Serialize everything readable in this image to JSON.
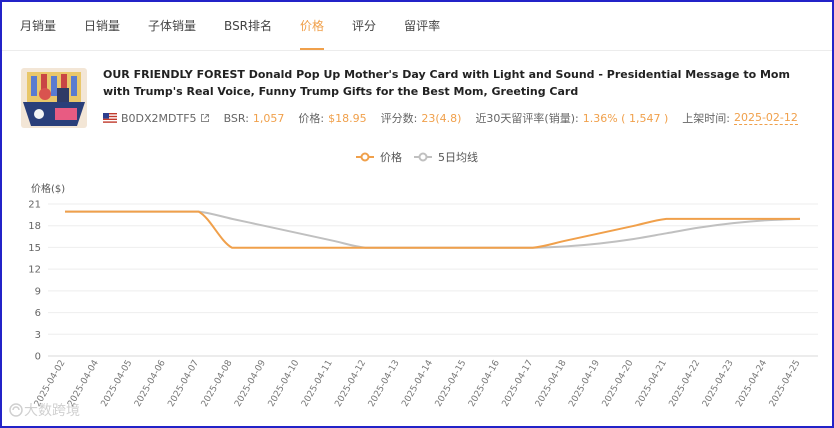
{
  "tabs": [
    "月销量",
    "日销量",
    "子体销量",
    "BSR排名",
    "价格",
    "评分",
    "留评率"
  ],
  "active_tab": "价格",
  "product": {
    "title": "OUR FRIENDLY FOREST Donald Pop Up Mother's Day Card with Light and Sound - Presidential Message to Mom with Trump's Real Voice, Funny Trump Gifts for the Best Mom, Greeting Card",
    "asin": "B0DX2MDTF5",
    "bsr_label": "BSR:",
    "bsr_value": "1,057",
    "price_label": "价格:",
    "price_value": "$18.95",
    "rating_label": "评分数:",
    "rating_value": "23(4.8)",
    "review_rate_label": "近30天留评率(销量):",
    "review_rate_value": "1.36% ( 1,547 )",
    "listed_label": "上架时间:",
    "listed_value": "2025-02-12",
    "flag_icon": "us-flag-icon",
    "link_icon": "external-link-icon"
  },
  "legend": [
    {
      "name": "价格",
      "color": "#f0a04b"
    },
    {
      "name": "5日均线",
      "color": "#c0c0c0"
    }
  ],
  "watermark": "大数跨境",
  "chart_data": {
    "type": "line",
    "ylabel": "价格($)",
    "ylim": [
      0,
      21
    ],
    "yticks": [
      0,
      3,
      6,
      9,
      12,
      15,
      18,
      21
    ],
    "grid": true,
    "legend_position": "top-center",
    "x": [
      "2025-04-02",
      "2025-04-04",
      "2025-04-05",
      "2025-04-06",
      "2025-04-07",
      "2025-04-08",
      "2025-04-09",
      "2025-04-10",
      "2025-04-11",
      "2025-04-12",
      "2025-04-13",
      "2025-04-14",
      "2025-04-15",
      "2025-04-16",
      "2025-04-17",
      "2025-04-18",
      "2025-04-19",
      "2025-04-20",
      "2025-04-21",
      "2025-04-22",
      "2025-04-23",
      "2025-04-24",
      "2025-04-25"
    ],
    "series": [
      {
        "name": "价格",
        "color": "#f0a04b",
        "values": [
          19.95,
          19.95,
          19.95,
          19.95,
          19.95,
          14.95,
          14.95,
          14.95,
          14.95,
          14.95,
          14.95,
          14.95,
          14.95,
          14.95,
          14.95,
          15.95,
          16.95,
          17.95,
          18.95,
          18.95,
          18.95,
          18.95,
          18.95
        ]
      },
      {
        "name": "5日均线",
        "color": "#c0c0c0",
        "values": [
          19.95,
          19.95,
          19.95,
          19.95,
          19.95,
          18.95,
          17.95,
          16.95,
          15.95,
          14.95,
          14.95,
          14.95,
          14.95,
          14.95,
          14.95,
          15.15,
          15.55,
          16.15,
          16.95,
          17.75,
          18.35,
          18.75,
          18.95
        ]
      }
    ]
  }
}
